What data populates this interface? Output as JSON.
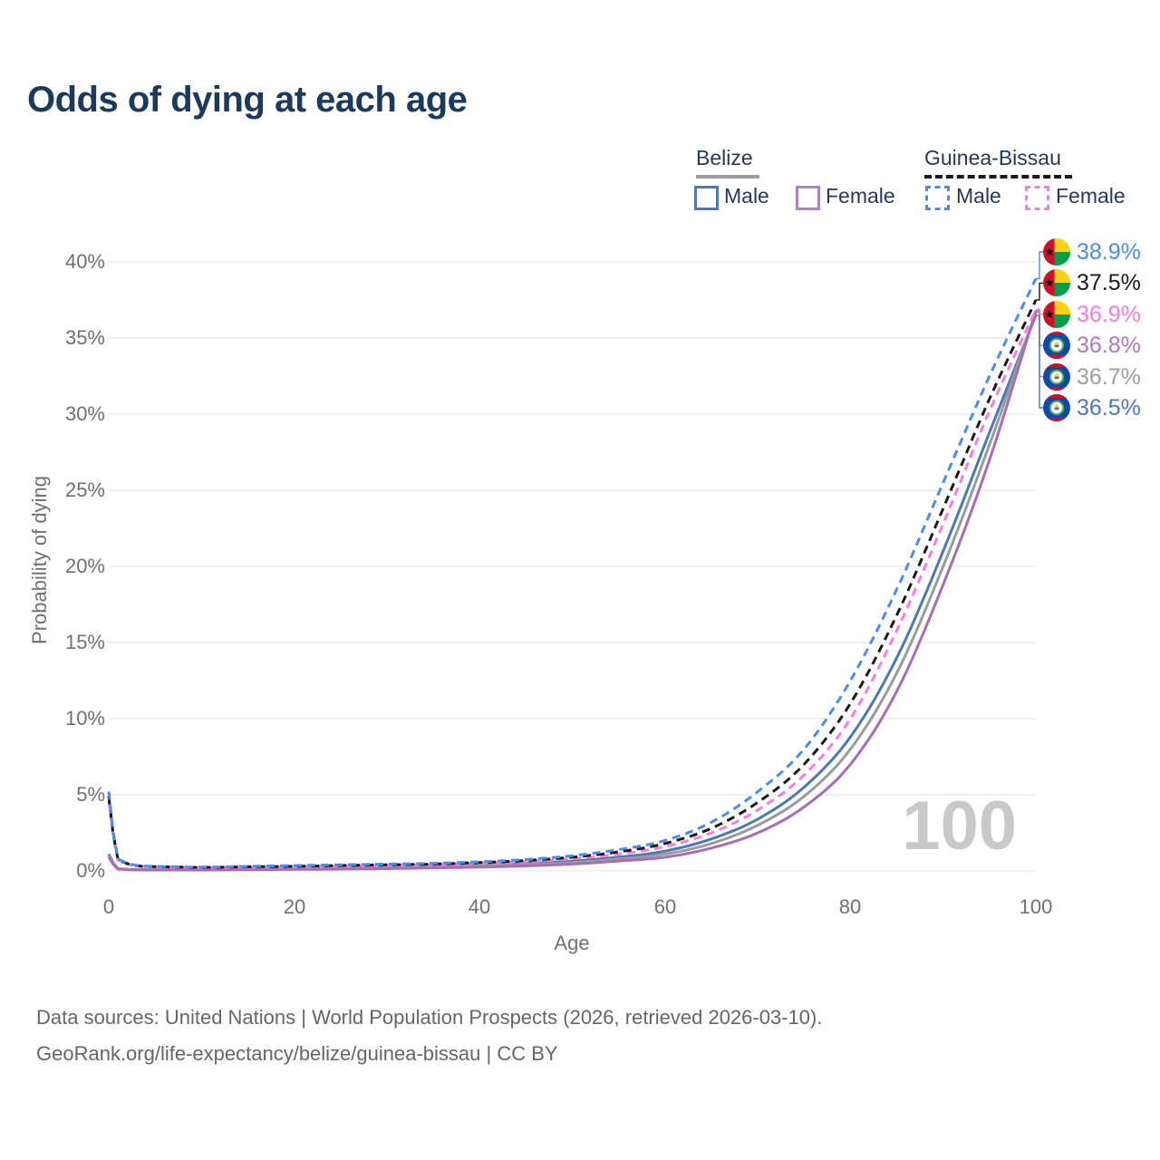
{
  "title": "Odds of dying at each age",
  "legend": {
    "groups": [
      {
        "label": "Belize",
        "line_style": "solid",
        "underline_color": "#9e9e9e",
        "items": [
          {
            "label": "Male",
            "color": "#4a79b8"
          },
          {
            "label": "Female",
            "color": "#b77fc6"
          }
        ]
      },
      {
        "label": "Guinea-Bissau",
        "line_style": "dashed",
        "underline_color": "#1a1a1a",
        "items": [
          {
            "label": "Male",
            "color": "#4a8df0"
          },
          {
            "label": "Female",
            "color": "#ff7ae0"
          }
        ]
      }
    ]
  },
  "y_axis": {
    "title": "Probability of dying",
    "ticks": [
      "40%",
      "35%",
      "30%",
      "25%",
      "20%",
      "15%",
      "10%",
      "5%",
      "0%"
    ]
  },
  "x_axis": {
    "title": "Age",
    "ticks": [
      "0",
      "20",
      "40",
      "60",
      "80",
      "100"
    ]
  },
  "watermark_age": "100",
  "end_labels": [
    {
      "value": "38.9%",
      "color": "#4a8df0",
      "flag": "guinea-bissau"
    },
    {
      "value": "37.5%",
      "color": "#1a1a1a",
      "flag": "guinea-bissau"
    },
    {
      "value": "36.9%",
      "color": "#ff7ae0",
      "flag": "guinea-bissau"
    },
    {
      "value": "36.8%",
      "color": "#b07ac2",
      "flag": "belize"
    },
    {
      "value": "36.7%",
      "color": "#9e9e9e",
      "flag": "belize"
    },
    {
      "value": "36.5%",
      "color": "#4a79b8",
      "flag": "belize"
    }
  ],
  "footer": {
    "line1": "Data sources: United Nations | World Population Prospects (2026, retrieved 2026-03-10).",
    "line2": "GeoRank.org/life-expectancy/belize/guinea-bissau | CC BY"
  },
  "chart_data": {
    "type": "line",
    "title": "Odds of dying at each age",
    "xlabel": "Age",
    "ylabel": "Probability of dying",
    "xlim": [
      0,
      100
    ],
    "ylim_percent": [
      0,
      40
    ],
    "x_ticks": [
      0,
      20,
      40,
      60,
      80,
      100
    ],
    "y_ticks_percent": [
      0,
      5,
      10,
      15,
      20,
      25,
      30,
      35,
      40
    ],
    "grid": "horizontal",
    "legend_position": "top-right",
    "x": [
      0,
      1,
      5,
      10,
      15,
      20,
      25,
      30,
      35,
      40,
      45,
      50,
      55,
      60,
      65,
      70,
      75,
      80,
      85,
      90,
      95,
      100
    ],
    "series": [
      {
        "name": "Guinea-Bissau Male",
        "style": "dashed",
        "color": "#4a8df0",
        "end_label": "38.9%",
        "values": [
          5.2,
          0.8,
          0.3,
          0.25,
          0.3,
          0.35,
          0.4,
          0.45,
          0.5,
          0.6,
          0.75,
          1.0,
          1.4,
          2.0,
          3.2,
          5.2,
          8.0,
          12.5,
          18.5,
          25.5,
          32.5,
          38.9
        ]
      },
      {
        "name": "Guinea-Bissau Both sexes",
        "style": "dashed",
        "color": "#1a1a1a",
        "end_label": "37.5%",
        "values": [
          4.9,
          0.75,
          0.28,
          0.23,
          0.27,
          0.3,
          0.35,
          0.4,
          0.45,
          0.55,
          0.68,
          0.9,
          1.25,
          1.8,
          2.8,
          4.5,
          7.0,
          11.0,
          16.8,
          23.8,
          31.0,
          37.5
        ]
      },
      {
        "name": "Guinea-Bissau Female",
        "style": "dashed",
        "color": "#ff7ae0",
        "end_label": "36.9%",
        "values": [
          4.6,
          0.7,
          0.26,
          0.21,
          0.24,
          0.26,
          0.3,
          0.35,
          0.4,
          0.5,
          0.6,
          0.8,
          1.1,
          1.6,
          2.5,
          4.0,
          6.3,
          10.0,
          15.8,
          22.8,
          30.2,
          36.9
        ]
      },
      {
        "name": "Belize Female",
        "style": "solid",
        "color": "#a86db6",
        "end_label": "36.8%",
        "values": [
          0.9,
          0.12,
          0.06,
          0.06,
          0.08,
          0.1,
          0.12,
          0.15,
          0.2,
          0.25,
          0.33,
          0.45,
          0.65,
          0.9,
          1.5,
          2.5,
          4.2,
          7.0,
          11.8,
          18.8,
          27.0,
          36.8
        ]
      },
      {
        "name": "Belize Both sexes",
        "style": "solid",
        "color": "#9b9b9b",
        "end_label": "36.7%",
        "values": [
          1.0,
          0.13,
          0.07,
          0.07,
          0.1,
          0.15,
          0.18,
          0.22,
          0.27,
          0.33,
          0.42,
          0.55,
          0.78,
          1.1,
          1.8,
          3.0,
          4.9,
          8.0,
          13.0,
          20.0,
          28.0,
          36.7
        ]
      },
      {
        "name": "Belize Male",
        "style": "solid",
        "color": "#4a79b8",
        "end_label": "36.5%",
        "values": [
          1.1,
          0.15,
          0.08,
          0.08,
          0.13,
          0.2,
          0.25,
          0.3,
          0.35,
          0.4,
          0.5,
          0.65,
          0.9,
          1.3,
          2.1,
          3.4,
          5.5,
          8.8,
          14.0,
          21.0,
          28.8,
          36.5
        ]
      }
    ]
  }
}
